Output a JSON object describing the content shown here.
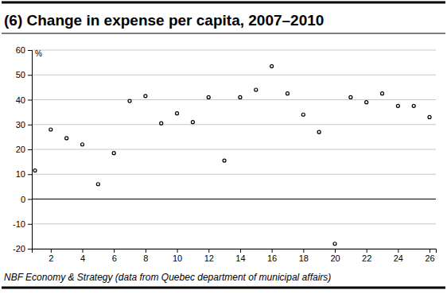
{
  "chart_data": {
    "type": "scatter",
    "title": "(6) Change in expense per capita, 2007–2010",
    "y_label": "%",
    "source": "NBF Economy & Strategy (data from Quebec department of municipal affairs)",
    "x": [
      1,
      2,
      3,
      4,
      5,
      6,
      7,
      8,
      9,
      10,
      11,
      12,
      13,
      14,
      15,
      16,
      17,
      18,
      19,
      20,
      21,
      22,
      23,
      24,
      25,
      26
    ],
    "values": [
      11.5,
      28,
      24.5,
      22,
      6,
      18.5,
      39.5,
      41.5,
      30.5,
      34.5,
      31,
      41,
      15.5,
      41,
      44,
      53.5,
      42.5,
      34,
      27,
      -18,
      41,
      39,
      42.5,
      37.5,
      37.5,
      33
    ],
    "color": "#000000",
    "marker": "circle",
    "xlim": [
      0.8,
      26.4
    ],
    "xticks": [
      2,
      4,
      6,
      8,
      10,
      12,
      14,
      16,
      18,
      20,
      22,
      24,
      26
    ],
    "ylim": [
      -20,
      60
    ],
    "yticks": [
      -20,
      -10,
      0,
      10,
      20,
      30,
      40,
      50,
      60
    ],
    "grid": true
  }
}
